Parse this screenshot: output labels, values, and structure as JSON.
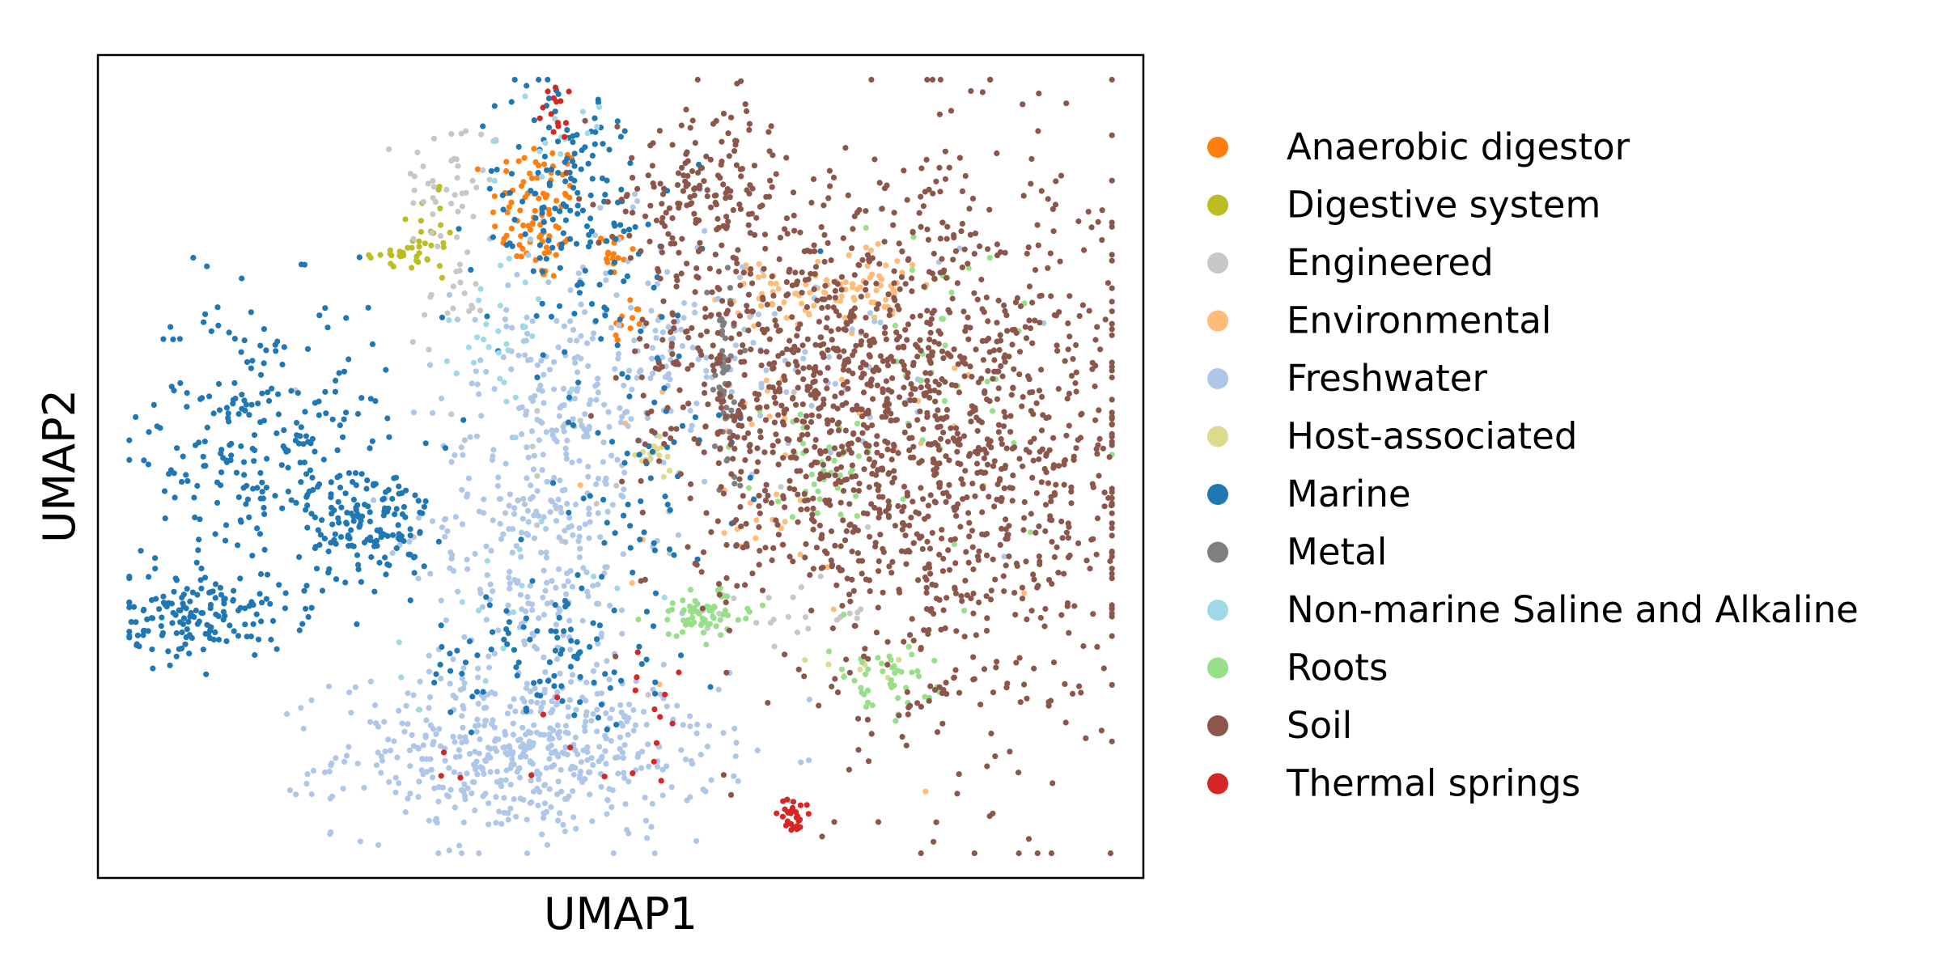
{
  "chart_data": {
    "type": "scatter",
    "title": "",
    "xlabel": "UMAP1",
    "ylabel": "UMAP2",
    "xlim": [
      0,
      10
    ],
    "ylim": [
      0,
      10
    ],
    "grid": false,
    "ticks": false,
    "legend_position": "outside-right",
    "series": [
      {
        "name": "Anaerobic digestor",
        "color": "#ff7f0e",
        "clusters": [
          {
            "cx": 4.2,
            "cy": 8.1,
            "sx": 0.22,
            "sy": 0.45,
            "n": 90
          },
          {
            "cx": 4.9,
            "cy": 7.6,
            "sx": 0.12,
            "sy": 0.2,
            "n": 18
          },
          {
            "cx": 5.1,
            "cy": 6.8,
            "sx": 0.12,
            "sy": 0.15,
            "n": 12
          }
        ]
      },
      {
        "name": "Digestive system",
        "color": "#bcbd22",
        "clusters": [
          {
            "cx": 2.9,
            "cy": 7.55,
            "sx": 0.2,
            "sy": 0.1,
            "n": 22
          },
          {
            "cx": 3.2,
            "cy": 7.9,
            "sx": 0.12,
            "sy": 0.35,
            "n": 20
          }
        ]
      },
      {
        "name": "Engineered",
        "color": "#c7c7c7",
        "clusters": [
          {
            "cx": 3.4,
            "cy": 8.4,
            "sx": 0.25,
            "sy": 0.45,
            "n": 45
          },
          {
            "cx": 3.4,
            "cy": 7.0,
            "sx": 0.15,
            "sy": 0.25,
            "n": 18
          },
          {
            "cx": 6.7,
            "cy": 3.2,
            "sx": 0.35,
            "sy": 0.2,
            "n": 20
          },
          {
            "cx": 4.5,
            "cy": 4.5,
            "sx": 1.2,
            "sy": 1.2,
            "n": 25
          }
        ]
      },
      {
        "name": "Environmental",
        "color": "#ffbb78",
        "clusters": [
          {
            "cx": 7.4,
            "cy": 7.2,
            "sx": 0.25,
            "sy": 0.25,
            "n": 55
          },
          {
            "cx": 6.5,
            "cy": 7.1,
            "sx": 0.2,
            "sy": 0.2,
            "n": 35
          },
          {
            "cx": 7.0,
            "cy": 4.5,
            "sx": 1.0,
            "sy": 1.2,
            "n": 25
          },
          {
            "cx": 6.0,
            "cy": 5.0,
            "sx": 0.8,
            "sy": 0.8,
            "n": 20
          }
        ]
      },
      {
        "name": "Freshwater",
        "color": "#aec7e8",
        "clusters": [
          {
            "cx": 4.1,
            "cy": 1.5,
            "sx": 0.9,
            "sy": 0.5,
            "n": 520
          },
          {
            "cx": 4.2,
            "cy": 4.3,
            "sx": 0.5,
            "sy": 1.2,
            "n": 330
          },
          {
            "cx": 5.0,
            "cy": 6.3,
            "sx": 0.7,
            "sy": 0.8,
            "n": 170
          },
          {
            "cx": 6.8,
            "cy": 6.5,
            "sx": 0.9,
            "sy": 0.9,
            "n": 55
          }
        ]
      },
      {
        "name": "Host-associated",
        "color": "#dbdb8d",
        "clusters": [
          {
            "cx": 5.3,
            "cy": 5.1,
            "sx": 0.12,
            "sy": 0.1,
            "n": 15
          },
          {
            "cx": 7.2,
            "cy": 2.6,
            "sx": 0.2,
            "sy": 0.15,
            "n": 8
          }
        ]
      },
      {
        "name": "Marine",
        "color": "#1f77b4",
        "clusters": [
          {
            "cx": 1.6,
            "cy": 5.3,
            "sx": 0.6,
            "sy": 0.9,
            "n": 260
          },
          {
            "cx": 2.6,
            "cy": 4.3,
            "sx": 0.3,
            "sy": 0.35,
            "n": 130
          },
          {
            "cx": 1.0,
            "cy": 3.2,
            "sx": 0.4,
            "sy": 0.25,
            "n": 150
          },
          {
            "cx": 4.5,
            "cy": 8.2,
            "sx": 0.45,
            "sy": 0.8,
            "n": 160
          },
          {
            "cx": 4.3,
            "cy": 2.7,
            "sx": 0.6,
            "sy": 0.45,
            "n": 90
          },
          {
            "cx": 5.1,
            "cy": 5.0,
            "sx": 0.5,
            "sy": 1.2,
            "n": 80
          }
        ]
      },
      {
        "name": "Metal",
        "color": "#7f7f7f",
        "clusters": [
          {
            "cx": 6.0,
            "cy": 6.0,
            "sx": 0.08,
            "sy": 0.7,
            "n": 55
          }
        ]
      },
      {
        "name": "Non-marine Saline and Alkaline",
        "color": "#9edae5",
        "clusters": [
          {
            "cx": 3.9,
            "cy": 6.6,
            "sx": 0.25,
            "sy": 0.5,
            "n": 30
          },
          {
            "cx": 4.4,
            "cy": 8.9,
            "sx": 0.2,
            "sy": 0.25,
            "n": 15
          },
          {
            "cx": 3.6,
            "cy": 3.3,
            "sx": 0.6,
            "sy": 0.6,
            "n": 15
          }
        ]
      },
      {
        "name": "Roots",
        "color": "#98df8a",
        "clusters": [
          {
            "cx": 5.8,
            "cy": 3.2,
            "sx": 0.25,
            "sy": 0.15,
            "n": 65
          },
          {
            "cx": 7.5,
            "cy": 2.4,
            "sx": 0.25,
            "sy": 0.2,
            "n": 45
          },
          {
            "cx": 7.0,
            "cy": 5.0,
            "sx": 0.35,
            "sy": 0.3,
            "n": 35
          },
          {
            "cx": 8.0,
            "cy": 6.0,
            "sx": 0.8,
            "sy": 1.5,
            "n": 40
          }
        ]
      },
      {
        "name": "Soil",
        "color": "#8c564b",
        "clusters": [
          {
            "cx": 8.2,
            "cy": 5.2,
            "sx": 0.9,
            "sy": 1.7,
            "n": 1100
          },
          {
            "cx": 6.8,
            "cy": 5.8,
            "sx": 0.6,
            "sy": 1.1,
            "n": 450
          },
          {
            "cx": 5.8,
            "cy": 8.4,
            "sx": 0.45,
            "sy": 0.5,
            "n": 170
          },
          {
            "cx": 5.6,
            "cy": 6.2,
            "sx": 0.3,
            "sy": 0.8,
            "n": 90
          }
        ]
      },
      {
        "name": "Thermal springs",
        "color": "#d62728",
        "clusters": [
          {
            "cx": 6.65,
            "cy": 0.75,
            "sx": 0.06,
            "sy": 0.12,
            "n": 28
          },
          {
            "cx": 4.4,
            "cy": 9.3,
            "sx": 0.1,
            "sy": 0.2,
            "n": 14
          },
          {
            "cx": 5.3,
            "cy": 2.0,
            "sx": 0.12,
            "sy": 0.5,
            "n": 12
          },
          {
            "cx": 3.8,
            "cy": 1.5,
            "sx": 0.6,
            "sy": 0.3,
            "n": 8
          }
        ]
      }
    ]
  }
}
